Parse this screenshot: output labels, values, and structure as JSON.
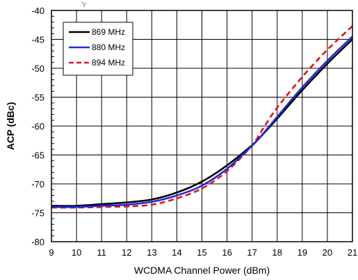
{
  "chart_data": {
    "type": "line",
    "xlabel": "WCDMA Channel Power (dBm)",
    "ylabel": "ACP (dBc)",
    "xlim": [
      9,
      21
    ],
    "ylim": [
      -80,
      -40
    ],
    "xticks": [
      9,
      10,
      11,
      12,
      13,
      14,
      15,
      16,
      17,
      18,
      19,
      20,
      21
    ],
    "yticks": [
      -80,
      -75,
      -70,
      -65,
      -60,
      -55,
      -50,
      -45,
      -40
    ],
    "grid": true,
    "legend_position": "top-left",
    "series": [
      {
        "name": "869 MHz",
        "color": "#000000",
        "style": "solid",
        "x": [
          9,
          10,
          11,
          12,
          13,
          14,
          15,
          16,
          17,
          17.5,
          18,
          19,
          20,
          21
        ],
        "y": [
          -73.8,
          -73.8,
          -73.5,
          -73.2,
          -72.7,
          -71.5,
          -69.6,
          -66.8,
          -63.3,
          -61.1,
          -58.7,
          -53.8,
          -49.2,
          -45.0
        ]
      },
      {
        "name": "880 MHz",
        "color": "#1f2bd6",
        "style": "solid",
        "x": [
          9,
          10,
          11,
          12,
          13,
          14,
          15,
          16,
          17,
          17.5,
          18,
          19,
          20,
          21
        ],
        "y": [
          -74.0,
          -74.0,
          -73.8,
          -73.6,
          -73.1,
          -72.0,
          -70.3,
          -67.4,
          -63.4,
          -61.0,
          -58.4,
          -53.3,
          -48.7,
          -44.5
        ]
      },
      {
        "name": "894 MHz",
        "color": "#e8101a",
        "style": "dashed",
        "x": [
          9,
          10,
          11,
          12,
          13,
          14,
          15,
          16,
          17,
          17.5,
          18,
          19,
          20,
          21
        ],
        "y": [
          -74.1,
          -74.1,
          -74.0,
          -73.9,
          -73.6,
          -72.5,
          -70.8,
          -67.8,
          -63.3,
          -60.0,
          -56.8,
          -51.5,
          -46.8,
          -42.7
        ]
      }
    ]
  }
}
